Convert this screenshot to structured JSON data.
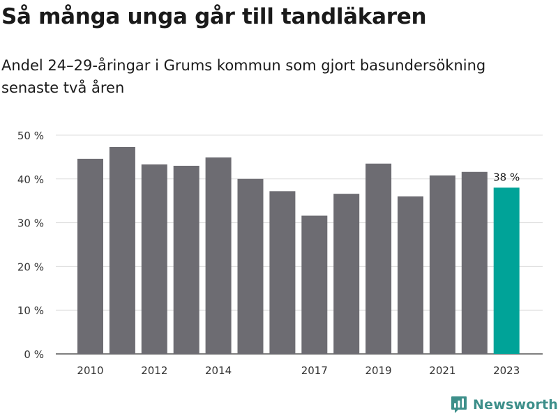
{
  "header": {
    "title": "Så många unga går till tandläkaren",
    "subtitle": "Andel 24–29-åringar i Grums kommun som gjort basundersökning senaste två åren"
  },
  "brand": {
    "name": "Newsworthy",
    "color": "#3d8f8a"
  },
  "colors": {
    "bar": "#6d6c72",
    "highlight": "#00a398",
    "grid": "#dddddd"
  },
  "chart_data": {
    "type": "bar",
    "title": "Så många unga går till tandläkaren",
    "subtitle": "Andel 24–29-åringar i Grums kommun som gjort basundersökning senaste två åren",
    "categories": [
      "2010",
      "2011",
      "2012",
      "2013",
      "2014",
      "2015",
      "2016",
      "2017",
      "2018",
      "2019",
      "2020",
      "2021",
      "2022",
      "2023"
    ],
    "values": [
      44.6,
      47.3,
      43.3,
      43.0,
      44.9,
      40.0,
      37.2,
      31.6,
      36.6,
      43.5,
      36.0,
      40.8,
      41.6,
      38.0
    ],
    "x_tick_labels": [
      "2010",
      "2012",
      "2014",
      "2017",
      "2019",
      "2021",
      "2023"
    ],
    "y_ticks": [
      0,
      10,
      20,
      30,
      40,
      50
    ],
    "y_tick_suffix": " %",
    "ylim": [
      0,
      50
    ],
    "highlight": {
      "category": "2023",
      "label": "38 %"
    },
    "grid": true,
    "xlabel": "",
    "ylabel": ""
  }
}
